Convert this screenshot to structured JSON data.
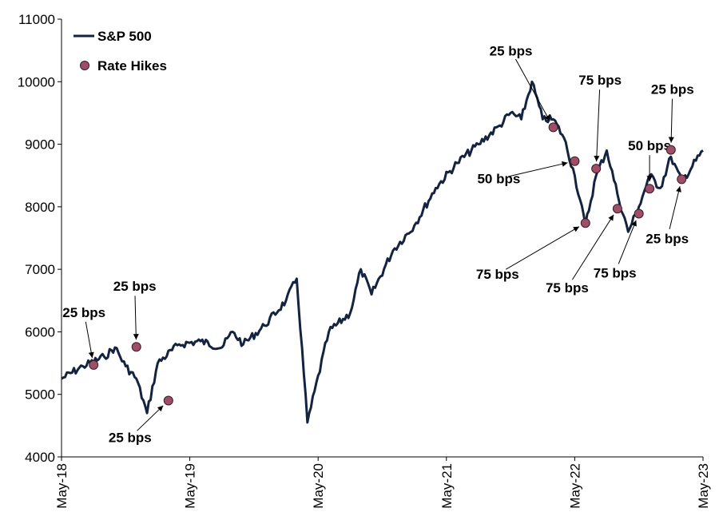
{
  "chart_data": {
    "type": "line",
    "title": "",
    "xlabel": "",
    "ylabel": "",
    "ylim": [
      4000,
      11000
    ],
    "xlim": [
      "2018-05",
      "2023-05"
    ],
    "y_ticks": [
      4000,
      5000,
      6000,
      7000,
      8000,
      9000,
      10000,
      11000
    ],
    "y_tick_labels": [
      "4000",
      "5000",
      "6000",
      "7000",
      "8000",
      "9000",
      "10000",
      "11000"
    ],
    "x_ticks": [
      "2018-05",
      "2019-05",
      "2020-05",
      "2021-05",
      "2022-05",
      "2023-05"
    ],
    "x_tick_labels": [
      "May-18",
      "May-19",
      "May-20",
      "May-21",
      "May-22",
      "May-23"
    ],
    "grid": false,
    "legend": {
      "placement": "top-left",
      "entries": [
        {
          "label": "S&P 500",
          "marker": "line"
        },
        {
          "label": "Rate Hikes",
          "marker": "dot"
        }
      ]
    },
    "colors": {
      "line": "#14233f",
      "dot_fill": "#9e4f68",
      "dot_stroke": "#3a1a24",
      "arrow": "#000000"
    },
    "series": [
      {
        "name": "S&P 500",
        "x": [
          "2018-05",
          "2018-07",
          "2018-09",
          "2018-10",
          "2018-11",
          "2018-12",
          "2019-01",
          "2019-02",
          "2019-04",
          "2019-06",
          "2019-08",
          "2019-09",
          "2019-10",
          "2019-12",
          "2020-02",
          "2020-03",
          "2020-04",
          "2020-06",
          "2020-08",
          "2020-09",
          "2020-10",
          "2020-12",
          "2021-02",
          "2021-04",
          "2021-06",
          "2021-08",
          "2021-10",
          "2021-11",
          "2021-12",
          "2022-01",
          "2022-02",
          "2022-03",
          "2022-04",
          "2022-05",
          "2022-06",
          "2022-07",
          "2022-08",
          "2022-09",
          "2022-10",
          "2022-11",
          "2022-12",
          "2023-01",
          "2023-02",
          "2023-03",
          "2023-05"
        ],
        "values": [
          5250,
          5450,
          5600,
          5750,
          5450,
          5250,
          4700,
          5500,
          5800,
          5850,
          5750,
          6000,
          5800,
          6100,
          6500,
          6850,
          4550,
          6000,
          6300,
          7000,
          6600,
          7300,
          7700,
          8300,
          8700,
          9000,
          9300,
          9500,
          9400,
          10000,
          9400,
          9400,
          9100,
          8500,
          7700,
          8500,
          8900,
          8200,
          7600,
          8000,
          8500,
          8300,
          8800,
          8400,
          8900
        ]
      },
      {
        "name": "Rate Hikes",
        "points": [
          {
            "x": "2018-08",
            "y": 5470,
            "label": "25 bps"
          },
          {
            "x": "2018-12",
            "y": 5760,
            "label": "25 bps"
          },
          {
            "x": "2019-03",
            "y": 4900,
            "label": "25 bps"
          },
          {
            "x": "2022-03",
            "y": 9270,
            "label": "25 bps"
          },
          {
            "x": "2022-05",
            "y": 8730,
            "label": "50 bps"
          },
          {
            "x": "2022-06",
            "y": 7740,
            "label": "75 bps"
          },
          {
            "x": "2022-07",
            "y": 8610,
            "label": "75 bps"
          },
          {
            "x": "2022-09",
            "y": 7970,
            "label": "75 bps"
          },
          {
            "x": "2022-11",
            "y": 7890,
            "label": "75 bps"
          },
          {
            "x": "2022-12",
            "y": 8290,
            "label": "50 bps"
          },
          {
            "x": "2023-02",
            "y": 8910,
            "label": "25 bps"
          },
          {
            "x": "2023-03",
            "y": 8440,
            "label": "25 bps"
          }
        ]
      }
    ]
  }
}
